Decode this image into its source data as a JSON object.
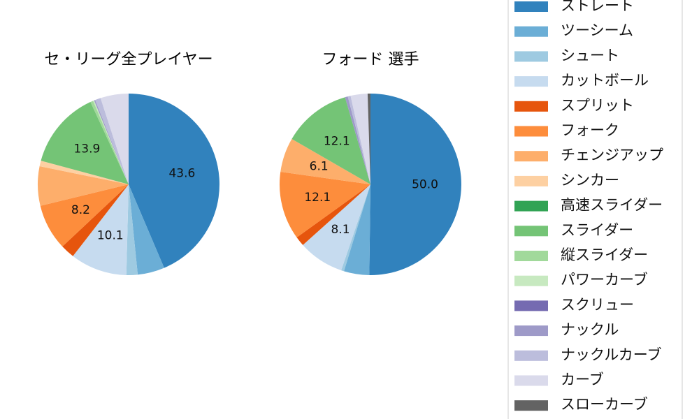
{
  "chart_data": [
    {
      "type": "pie",
      "title": "セ・リーグ全プレイヤー",
      "start_angle": "top",
      "direction": "clockwise",
      "slices": [
        {
          "name": "ストレート",
          "value": 43.6,
          "label": "43.6"
        },
        {
          "name": "ツーシーム",
          "value": 4.8,
          "label": ""
        },
        {
          "name": "シュート",
          "value": 2.0,
          "label": ""
        },
        {
          "name": "カットボール",
          "value": 10.1,
          "label": "10.1"
        },
        {
          "name": "スプリット",
          "value": 2.5,
          "label": ""
        },
        {
          "name": "フォーク",
          "value": 8.2,
          "label": "8.2"
        },
        {
          "name": "チェンジアップ",
          "value": 7.0,
          "label": ""
        },
        {
          "name": "シンカー",
          "value": 1.0,
          "label": ""
        },
        {
          "name": "高速スライダー",
          "value": 0.0,
          "label": ""
        },
        {
          "name": "スライダー",
          "value": 13.9,
          "label": "13.9"
        },
        {
          "name": "縦スライダー",
          "value": 0.5,
          "label": ""
        },
        {
          "name": "パワーカーブ",
          "value": 0.2,
          "label": ""
        },
        {
          "name": "スクリュー",
          "value": 0.0,
          "label": ""
        },
        {
          "name": "ナックル",
          "value": 0.2,
          "label": ""
        },
        {
          "name": "ナックルカーブ",
          "value": 1.0,
          "label": ""
        },
        {
          "name": "カーブ",
          "value": 5.0,
          "label": ""
        },
        {
          "name": "スローカーブ",
          "value": 0.0,
          "label": ""
        }
      ]
    },
    {
      "type": "pie",
      "title": "フォード  選手",
      "start_angle": "top",
      "direction": "clockwise",
      "slices": [
        {
          "name": "ストレート",
          "value": 50.0,
          "label": "50.0"
        },
        {
          "name": "ツーシーム",
          "value": 4.5,
          "label": ""
        },
        {
          "name": "シュート",
          "value": 0.5,
          "label": ""
        },
        {
          "name": "カットボール",
          "value": 8.1,
          "label": "8.1"
        },
        {
          "name": "スプリット",
          "value": 1.7,
          "label": ""
        },
        {
          "name": "フォーク",
          "value": 12.1,
          "label": "12.1"
        },
        {
          "name": "チェンジアップ",
          "value": 6.1,
          "label": "6.1"
        },
        {
          "name": "シンカー",
          "value": 0.0,
          "label": ""
        },
        {
          "name": "高速スライダー",
          "value": 0.0,
          "label": ""
        },
        {
          "name": "スライダー",
          "value": 12.1,
          "label": "12.1"
        },
        {
          "name": "縦スライダー",
          "value": 0.0,
          "label": ""
        },
        {
          "name": "パワーカーブ",
          "value": 0.0,
          "label": ""
        },
        {
          "name": "スクリュー",
          "value": 0.0,
          "label": ""
        },
        {
          "name": "ナックル",
          "value": 0.5,
          "label": ""
        },
        {
          "name": "ナックルカーブ",
          "value": 0.5,
          "label": ""
        },
        {
          "name": "カーブ",
          "value": 3.0,
          "label": ""
        },
        {
          "name": "スローカーブ",
          "value": 0.5,
          "label": ""
        }
      ]
    }
  ],
  "legend": {
    "placement": "right",
    "items": [
      {
        "name": "ストレート",
        "color": "#3182bd"
      },
      {
        "name": "ツーシーム",
        "color": "#6baed6"
      },
      {
        "name": "シュート",
        "color": "#9ecae1"
      },
      {
        "name": "カットボール",
        "color": "#c6dbef"
      },
      {
        "name": "スプリット",
        "color": "#e6550d"
      },
      {
        "name": "フォーク",
        "color": "#fd8d3c"
      },
      {
        "name": "チェンジアップ",
        "color": "#fdae6b"
      },
      {
        "name": "シンカー",
        "color": "#fdd0a2"
      },
      {
        "name": "高速スライダー",
        "color": "#31a354"
      },
      {
        "name": "スライダー",
        "color": "#74c476"
      },
      {
        "name": "縦スライダー",
        "color": "#a1d99b"
      },
      {
        "name": "パワーカーブ",
        "color": "#c7e9c0"
      },
      {
        "name": "スクリュー",
        "color": "#756bb1"
      },
      {
        "name": "ナックル",
        "color": "#9e9ac8"
      },
      {
        "name": "ナックルカーブ",
        "color": "#bcbddc"
      },
      {
        "name": "カーブ",
        "color": "#dadaeb"
      },
      {
        "name": "スローカーブ",
        "color": "#636363"
      }
    ]
  }
}
